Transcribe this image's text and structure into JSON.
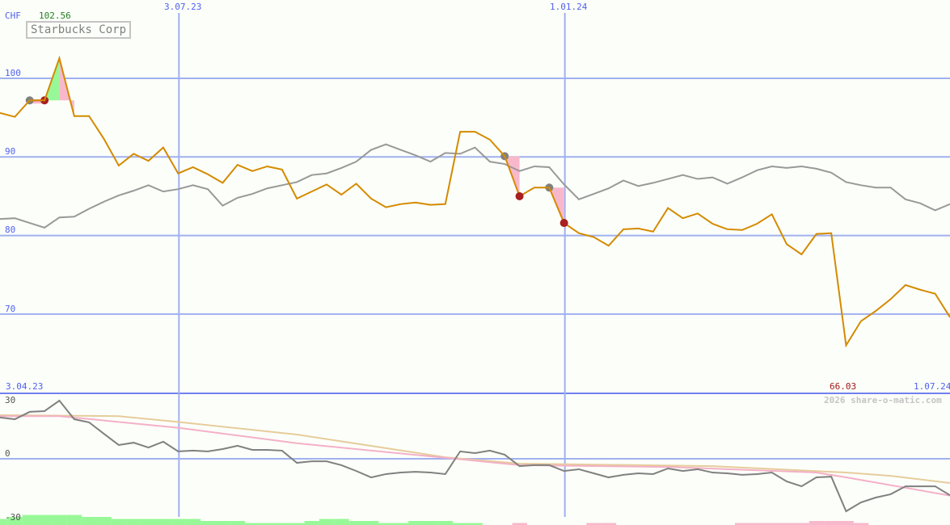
{
  "title": "Starbucks Corp",
  "currency": "CHF",
  "max_label": "102.56",
  "min_label": "66.03",
  "watermark": "2026 share-o-matic.com",
  "colors": {
    "price": "#d48a00",
    "compare": "#999999",
    "osc": "#808080",
    "osc_fast": "#f4b0c8",
    "osc_slow": "#e6cc9c",
    "grid": "#a0b0f0",
    "up": "#98f898",
    "down": "#f8b8cc",
    "marker_gray": "#808080",
    "marker_red": "#a82020",
    "max_label": "#208020",
    "min_label": "#a01818"
  },
  "chart_data": [
    {
      "type": "line",
      "title": "Starbucks Corp",
      "ylabel": "CHF",
      "ylim": [
        60,
        105
      ],
      "yticks": [
        "100",
        "90",
        "80",
        "70"
      ],
      "ytick_values": [
        100,
        90,
        80,
        70
      ],
      "x_labels": [
        {
          "label": "3.04.23",
          "week": 0
        },
        {
          "label": "3.07.23",
          "week": 12
        },
        {
          "label": "1.01.24",
          "week": 38
        },
        {
          "label": "1.07.24",
          "week": 64
        }
      ],
      "grid": true,
      "series": [
        {
          "values": [
            95.6,
            95.1,
            97.2,
            97.2,
            102.56,
            95.2,
            95.2,
            92.3,
            88.9,
            90.4,
            89.5,
            91.2,
            87.9,
            88.7,
            87.8,
            86.7,
            89.0,
            88.2,
            88.8,
            88.4,
            84.7,
            85.6,
            86.5,
            85.2,
            86.6,
            84.7,
            83.6,
            84.0,
            84.2,
            83.9,
            84.0,
            93.2,
            93.2,
            92.2,
            90.1,
            85.0,
            86.1,
            86.1,
            81.6,
            80.3,
            79.8,
            78.7,
            80.8,
            80.9,
            80.5,
            83.5,
            82.2,
            82.8,
            81.5,
            80.8,
            80.7,
            81.5,
            82.7,
            78.9,
            77.6,
            80.2,
            80.3,
            66.03,
            69.1,
            70.4,
            71.9,
            73.7,
            73.1,
            72.6,
            69.6
          ]
        },
        {
          "values": [
            82.1,
            82.2,
            81.6,
            81.0,
            82.3,
            82.4,
            83.4,
            84.3,
            85.1,
            85.7,
            86.4,
            85.6,
            85.9,
            86.4,
            85.9,
            83.8,
            84.8,
            85.3,
            86.0,
            86.4,
            86.8,
            87.7,
            87.9,
            88.6,
            89.4,
            90.9,
            91.6,
            90.9,
            90.2,
            89.4,
            90.5,
            90.4,
            91.2,
            89.4,
            89.1,
            88.2,
            88.8,
            88.7,
            86.5,
            84.6,
            85.3,
            86.0,
            87.0,
            86.3,
            86.7,
            87.2,
            87.7,
            87.2,
            87.4,
            86.6,
            87.4,
            88.3,
            88.8,
            88.6,
            88.8,
            88.5,
            88.0,
            86.8,
            86.4,
            86.1,
            86.1,
            84.6,
            84.1,
            83.2,
            84.0
          ]
        }
      ],
      "signals": [
        {
          "type": "buy",
          "from": 2,
          "to": 5
        },
        {
          "type": "sell",
          "from": 34,
          "to": 35
        },
        {
          "type": "sell",
          "from": 37,
          "to": 38
        }
      ]
    },
    {
      "type": "line",
      "ylim": [
        -30,
        30
      ],
      "yticks": [
        "30",
        "0",
        "-30"
      ],
      "ytick_values": [
        30,
        0,
        -30
      ],
      "series": [
        {
          "values": [
            21.3,
            20.4,
            24.2,
            24.6,
            30,
            20.4,
            18.8,
            12.9,
            7.1,
            8.3,
            5.8,
            8.8,
            3.8,
            4.2,
            3.8,
            5,
            6.7,
            4.6,
            4.6,
            4.2,
            -2.1,
            -1.3,
            -1.3,
            -3.3,
            -6.3,
            -9.6,
            -7.9,
            -7.1,
            -6.7,
            -7.1,
            -7.9,
            3.8,
            2.9,
            4.2,
            2.1,
            -3.8,
            -3.3,
            -3.3,
            -6.3,
            -5.4,
            -7.5,
            -9.6,
            -8.3,
            -7.5,
            -7.9,
            -5,
            -6.3,
            -5.4,
            -7.1,
            -7.5,
            -8.3,
            -7.9,
            -7.1,
            -11.7,
            -14.2,
            -9.6,
            -9.2,
            -27.1,
            -22.5,
            -20,
            -18.3,
            -14.2,
            -14.2,
            -14.2,
            -18.8
          ]
        },
        {
          "points": [
            [
              0,
              22
            ],
            [
              4,
              22
            ],
            [
              12,
              16
            ],
            [
              20,
              8
            ],
            [
              30,
              0.5
            ],
            [
              35,
              -3.3
            ],
            [
              45,
              -4.2
            ],
            [
              55,
              -7.1
            ],
            [
              57,
              -9.6
            ],
            [
              64,
              -19
            ]
          ]
        },
        {
          "points": [
            [
              0,
              22.5
            ],
            [
              8,
              22
            ],
            [
              12,
              19
            ],
            [
              20,
              12.5
            ],
            [
              30,
              0.8
            ],
            [
              35,
              -2.5
            ],
            [
              48,
              -3.8
            ],
            [
              57,
              -7.1
            ],
            [
              60,
              -8.8
            ],
            [
              64,
              -12.5
            ]
          ]
        }
      ],
      "histogram": [
        3,
        4,
        5,
        5,
        5,
        5,
        4,
        4,
        3,
        3,
        3,
        3,
        3,
        3,
        2,
        2,
        2,
        1,
        1,
        1,
        1,
        2,
        3,
        3,
        2,
        2,
        1,
        1,
        2,
        2,
        2,
        1,
        1,
        0,
        0,
        -1,
        0,
        0,
        0,
        0,
        -1,
        -1,
        0,
        0,
        0,
        0,
        0,
        0,
        0,
        0,
        -1,
        -1,
        -1,
        -1,
        -1,
        -2,
        -2,
        -2,
        -1,
        0,
        0,
        0,
        0,
        0,
        0
      ]
    }
  ]
}
